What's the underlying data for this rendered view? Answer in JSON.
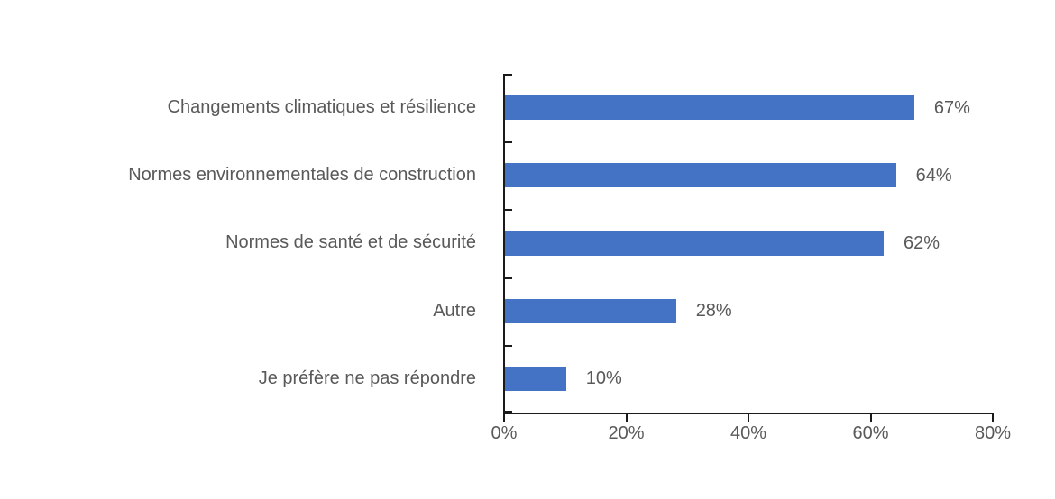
{
  "chart_data": {
    "type": "bar",
    "orientation": "horizontal",
    "title": "",
    "categories": [
      "Changements climatiques et résilience",
      "Normes environnementales de construction",
      "Normes de santé et de sécurité",
      "Autre",
      "Je préfère ne pas répondre"
    ],
    "values": [
      67,
      64,
      62,
      28,
      10
    ],
    "value_labels": [
      "67%",
      "64%",
      "62%",
      "28%",
      "10%"
    ],
    "x_ticks": [
      "0%",
      "20%",
      "40%",
      "60%",
      "80%"
    ],
    "x_tick_values": [
      0,
      20,
      40,
      60,
      80
    ],
    "xlim": [
      0,
      80
    ],
    "grid": false,
    "legend": null,
    "bar_color": "#4472C4",
    "text_color": "#595959",
    "axis_color": "#1a1a1a"
  }
}
